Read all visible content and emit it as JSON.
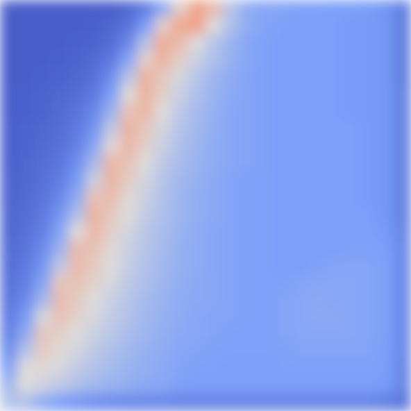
{
  "chart_data": {
    "type": "heatmap",
    "tick_labels": false,
    "zlim": [
      0,
      1
    ],
    "cells": [
      [
        0.05,
        0.05,
        0.05,
        0.05,
        0.05,
        0.05,
        0.05,
        0.08,
        0.15,
        0.3,
        0.55,
        0.72,
        0.62,
        0.4,
        0.3,
        0.28,
        0.27,
        0.26,
        0.26,
        0.25,
        0.25,
        0.24,
        0.22,
        0.15
      ],
      [
        0.05,
        0.05,
        0.05,
        0.05,
        0.05,
        0.06,
        0.08,
        0.12,
        0.25,
        0.55,
        0.7,
        0.72,
        0.5,
        0.38,
        0.3,
        0.27,
        0.26,
        0.25,
        0.25,
        0.25,
        0.24,
        0.24,
        0.23,
        0.15
      ],
      [
        0.05,
        0.05,
        0.05,
        0.05,
        0.06,
        0.07,
        0.1,
        0.18,
        0.4,
        0.68,
        0.62,
        0.5,
        0.4,
        0.33,
        0.28,
        0.26,
        0.25,
        0.25,
        0.25,
        0.25,
        0.24,
        0.24,
        0.23,
        0.15
      ],
      [
        0.05,
        0.05,
        0.05,
        0.06,
        0.07,
        0.09,
        0.14,
        0.28,
        0.55,
        0.66,
        0.55,
        0.45,
        0.38,
        0.32,
        0.28,
        0.26,
        0.25,
        0.25,
        0.25,
        0.25,
        0.24,
        0.24,
        0.23,
        0.15
      ],
      [
        0.05,
        0.05,
        0.06,
        0.07,
        0.08,
        0.11,
        0.2,
        0.4,
        0.66,
        0.58,
        0.48,
        0.4,
        0.34,
        0.3,
        0.27,
        0.26,
        0.25,
        0.25,
        0.25,
        0.25,
        0.24,
        0.24,
        0.23,
        0.15
      ],
      [
        0.05,
        0.06,
        0.07,
        0.08,
        0.1,
        0.14,
        0.25,
        0.5,
        0.66,
        0.55,
        0.45,
        0.38,
        0.33,
        0.29,
        0.27,
        0.26,
        0.25,
        0.25,
        0.25,
        0.25,
        0.24,
        0.24,
        0.23,
        0.16
      ],
      [
        0.05,
        0.06,
        0.07,
        0.09,
        0.12,
        0.18,
        0.33,
        0.6,
        0.64,
        0.5,
        0.42,
        0.36,
        0.32,
        0.28,
        0.27,
        0.26,
        0.25,
        0.25,
        0.25,
        0.25,
        0.24,
        0.24,
        0.23,
        0.16
      ],
      [
        0.06,
        0.07,
        0.08,
        0.1,
        0.14,
        0.22,
        0.42,
        0.65,
        0.58,
        0.47,
        0.4,
        0.35,
        0.31,
        0.28,
        0.27,
        0.26,
        0.25,
        0.25,
        0.25,
        0.25,
        0.25,
        0.24,
        0.23,
        0.16
      ],
      [
        0.06,
        0.07,
        0.09,
        0.11,
        0.16,
        0.28,
        0.52,
        0.64,
        0.55,
        0.45,
        0.38,
        0.34,
        0.3,
        0.28,
        0.27,
        0.26,
        0.25,
        0.25,
        0.25,
        0.25,
        0.25,
        0.24,
        0.23,
        0.16
      ],
      [
        0.06,
        0.08,
        0.1,
        0.13,
        0.2,
        0.36,
        0.64,
        0.6,
        0.5,
        0.42,
        0.37,
        0.33,
        0.3,
        0.28,
        0.27,
        0.26,
        0.25,
        0.25,
        0.25,
        0.25,
        0.25,
        0.24,
        0.23,
        0.16
      ],
      [
        0.07,
        0.08,
        0.11,
        0.15,
        0.24,
        0.45,
        0.65,
        0.56,
        0.47,
        0.4,
        0.35,
        0.32,
        0.29,
        0.27,
        0.26,
        0.26,
        0.25,
        0.25,
        0.25,
        0.25,
        0.25,
        0.24,
        0.23,
        0.16
      ],
      [
        0.07,
        0.09,
        0.12,
        0.18,
        0.3,
        0.6,
        0.62,
        0.52,
        0.45,
        0.39,
        0.34,
        0.31,
        0.29,
        0.27,
        0.26,
        0.26,
        0.25,
        0.25,
        0.25,
        0.25,
        0.25,
        0.24,
        0.23,
        0.16
      ],
      [
        0.08,
        0.1,
        0.14,
        0.22,
        0.38,
        0.65,
        0.58,
        0.5,
        0.43,
        0.38,
        0.34,
        0.31,
        0.29,
        0.27,
        0.26,
        0.26,
        0.25,
        0.25,
        0.25,
        0.25,
        0.25,
        0.25,
        0.23,
        0.16
      ],
      [
        0.08,
        0.11,
        0.16,
        0.27,
        0.5,
        0.64,
        0.55,
        0.47,
        0.41,
        0.37,
        0.33,
        0.3,
        0.28,
        0.27,
        0.26,
        0.26,
        0.25,
        0.25,
        0.25,
        0.25,
        0.25,
        0.25,
        0.24,
        0.17
      ],
      [
        0.09,
        0.12,
        0.19,
        0.33,
        0.62,
        0.6,
        0.52,
        0.45,
        0.4,
        0.36,
        0.32,
        0.3,
        0.28,
        0.27,
        0.26,
        0.26,
        0.25,
        0.25,
        0.25,
        0.25,
        0.26,
        0.26,
        0.25,
        0.18
      ],
      [
        0.1,
        0.14,
        0.22,
        0.42,
        0.63,
        0.57,
        0.5,
        0.44,
        0.39,
        0.35,
        0.32,
        0.3,
        0.28,
        0.27,
        0.26,
        0.26,
        0.25,
        0.25,
        0.26,
        0.27,
        0.27,
        0.27,
        0.26,
        0.18
      ],
      [
        0.11,
        0.16,
        0.27,
        0.58,
        0.6,
        0.54,
        0.48,
        0.42,
        0.38,
        0.34,
        0.31,
        0.29,
        0.28,
        0.27,
        0.26,
        0.26,
        0.26,
        0.27,
        0.28,
        0.28,
        0.28,
        0.27,
        0.26,
        0.18
      ],
      [
        0.12,
        0.19,
        0.35,
        0.62,
        0.57,
        0.5,
        0.45,
        0.4,
        0.36,
        0.33,
        0.3,
        0.29,
        0.28,
        0.27,
        0.26,
        0.26,
        0.27,
        0.28,
        0.29,
        0.28,
        0.28,
        0.27,
        0.26,
        0.18
      ],
      [
        0.14,
        0.24,
        0.48,
        0.6,
        0.54,
        0.48,
        0.43,
        0.39,
        0.35,
        0.32,
        0.3,
        0.28,
        0.27,
        0.27,
        0.26,
        0.26,
        0.27,
        0.28,
        0.29,
        0.29,
        0.28,
        0.27,
        0.26,
        0.18
      ],
      [
        0.16,
        0.3,
        0.58,
        0.55,
        0.5,
        0.45,
        0.41,
        0.37,
        0.34,
        0.31,
        0.29,
        0.28,
        0.27,
        0.26,
        0.26,
        0.26,
        0.27,
        0.28,
        0.28,
        0.28,
        0.28,
        0.27,
        0.26,
        0.18
      ],
      [
        0.2,
        0.4,
        0.56,
        0.52,
        0.47,
        0.42,
        0.38,
        0.35,
        0.32,
        0.3,
        0.28,
        0.27,
        0.26,
        0.26,
        0.26,
        0.26,
        0.26,
        0.27,
        0.27,
        0.27,
        0.27,
        0.27,
        0.25,
        0.18
      ],
      [
        0.26,
        0.5,
        0.52,
        0.48,
        0.43,
        0.39,
        0.36,
        0.33,
        0.31,
        0.29,
        0.27,
        0.26,
        0.26,
        0.25,
        0.25,
        0.25,
        0.26,
        0.26,
        0.26,
        0.26,
        0.26,
        0.26,
        0.25,
        0.17
      ],
      [
        0.35,
        0.5,
        0.46,
        0.42,
        0.38,
        0.35,
        0.33,
        0.31,
        0.29,
        0.28,
        0.26,
        0.25,
        0.25,
        0.25,
        0.25,
        0.25,
        0.25,
        0.25,
        0.25,
        0.25,
        0.25,
        0.25,
        0.24,
        0.17
      ],
      [
        0.4,
        0.38,
        0.3,
        0.25,
        0.22,
        0.2,
        0.19,
        0.18,
        0.18,
        0.18,
        0.17,
        0.17,
        0.17,
        0.17,
        0.17,
        0.17,
        0.17,
        0.17,
        0.17,
        0.17,
        0.17,
        0.17,
        0.16,
        0.12
      ]
    ]
  }
}
